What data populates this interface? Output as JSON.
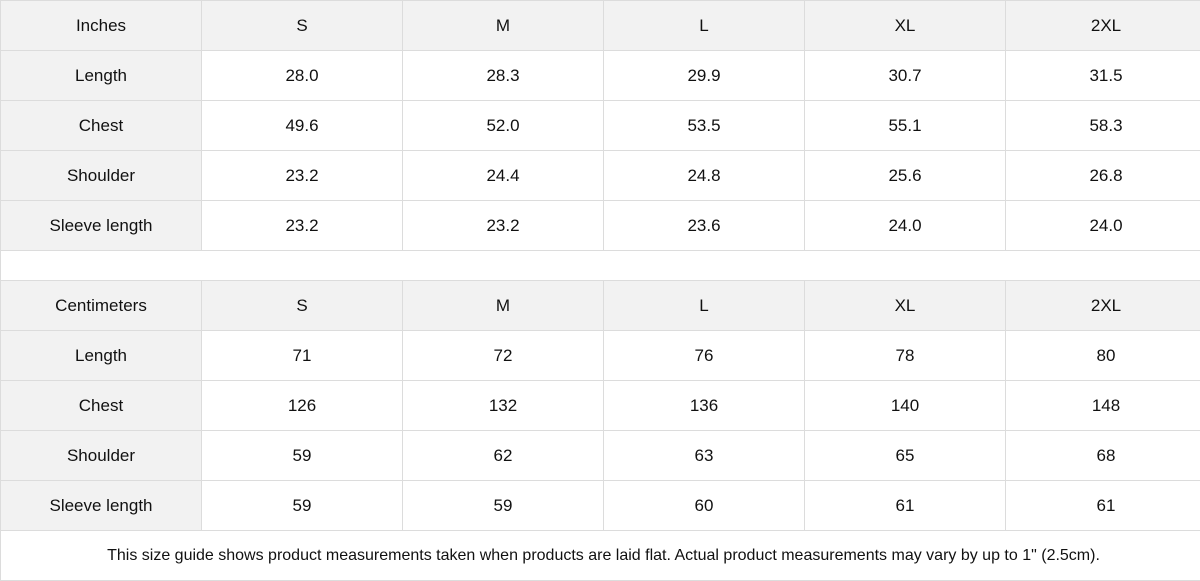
{
  "tables": [
    {
      "unit": "Inches",
      "sizes": [
        "S",
        "M",
        "L",
        "XL",
        "2XL"
      ],
      "rows": [
        {
          "label": "Length",
          "values": [
            "28.0",
            "28.3",
            "29.9",
            "30.7",
            "31.5"
          ]
        },
        {
          "label": "Chest",
          "values": [
            "49.6",
            "52.0",
            "53.5",
            "55.1",
            "58.3"
          ]
        },
        {
          "label": "Shoulder",
          "values": [
            "23.2",
            "24.4",
            "24.8",
            "25.6",
            "26.8"
          ]
        },
        {
          "label": "Sleeve length",
          "values": [
            "23.2",
            "23.2",
            "23.6",
            "24.0",
            "24.0"
          ]
        }
      ]
    },
    {
      "unit": "Centimeters",
      "sizes": [
        "S",
        "M",
        "L",
        "XL",
        "2XL"
      ],
      "rows": [
        {
          "label": "Length",
          "values": [
            "71",
            "72",
            "76",
            "78",
            "80"
          ]
        },
        {
          "label": "Chest",
          "values": [
            "126",
            "132",
            "136",
            "140",
            "148"
          ]
        },
        {
          "label": "Shoulder",
          "values": [
            "59",
            "62",
            "63",
            "65",
            "68"
          ]
        },
        {
          "label": "Sleeve length",
          "values": [
            "59",
            "59",
            "60",
            "61",
            "61"
          ]
        }
      ]
    }
  ],
  "note": "This size guide shows product measurements taken when products are laid flat.  Actual product measurements may vary by up to 1\" (2.5cm).",
  "colors": {
    "header_bg": "#f2f2f2",
    "border": "#dcdcdc"
  }
}
